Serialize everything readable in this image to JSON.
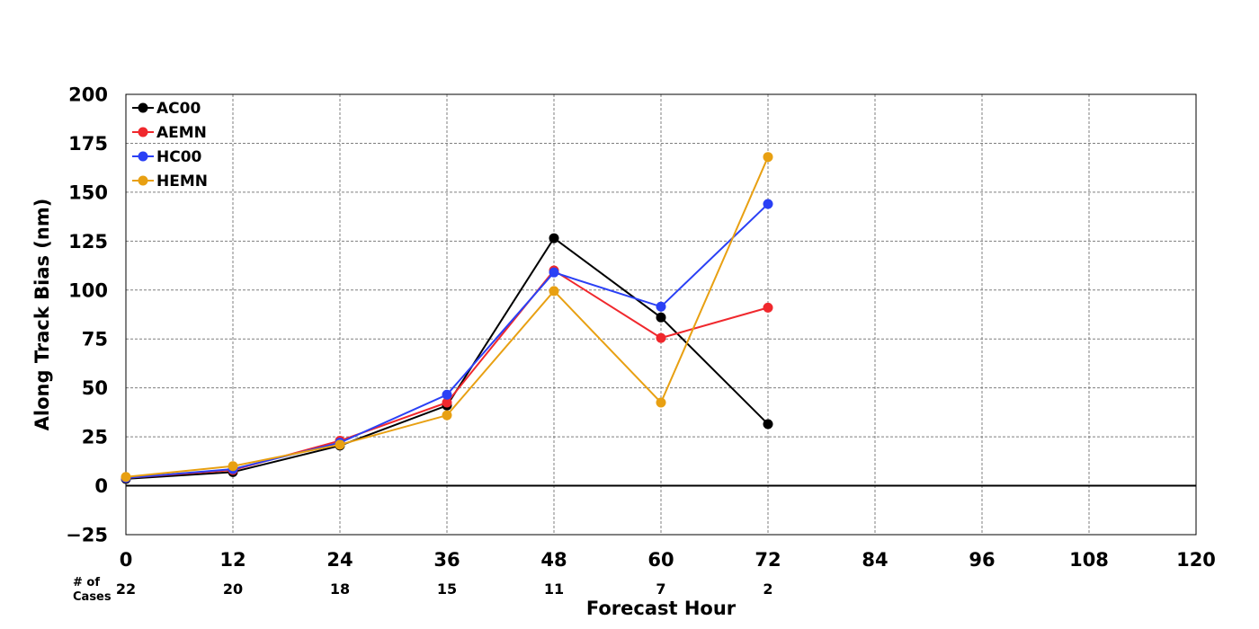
{
  "chart_data": {
    "type": "line",
    "title": "",
    "xlabel": "Forecast Hour",
    "ylabel": "Along Track Bias (nm)",
    "xlim": [
      0,
      120
    ],
    "ylim": [
      -25,
      200
    ],
    "x_ticks": [
      "0",
      "12",
      "24",
      "36",
      "48",
      "60",
      "72",
      "84",
      "96",
      "108",
      "120"
    ],
    "y_ticks": [
      "200",
      "175",
      "150",
      "125",
      "100",
      "75",
      "50",
      "25",
      "0",
      "−25"
    ],
    "grid": true,
    "legend_position": "top-left",
    "cases_label_line1": "# of",
    "cases_label_line2": "Cases",
    "cases": [
      {
        "x": 0,
        "label": "22"
      },
      {
        "x": 12,
        "label": "20"
      },
      {
        "x": 24,
        "label": "18"
      },
      {
        "x": 36,
        "label": "15"
      },
      {
        "x": 48,
        "label": "11"
      },
      {
        "x": 60,
        "label": "7"
      },
      {
        "x": 72,
        "label": "2"
      }
    ],
    "x": [
      0,
      12,
      24,
      36,
      48,
      60,
      72
    ],
    "series": [
      {
        "name": "AC00",
        "color": "#000000",
        "values": [
          3.5,
          7,
          20.5,
          41,
          126.5,
          86,
          31.5
        ]
      },
      {
        "name": "AEMN",
        "color": "#f0282d",
        "values": [
          4,
          8,
          23,
          42.5,
          110,
          75.5,
          91
        ]
      },
      {
        "name": "HC00",
        "color": "#2a40f5",
        "values": [
          4,
          8.5,
          22,
          46.5,
          109,
          91.5,
          144
        ]
      },
      {
        "name": "HEMN",
        "color": "#e8a012",
        "values": [
          4.5,
          10,
          21,
          36,
          99.5,
          42.5,
          168
        ]
      }
    ]
  }
}
